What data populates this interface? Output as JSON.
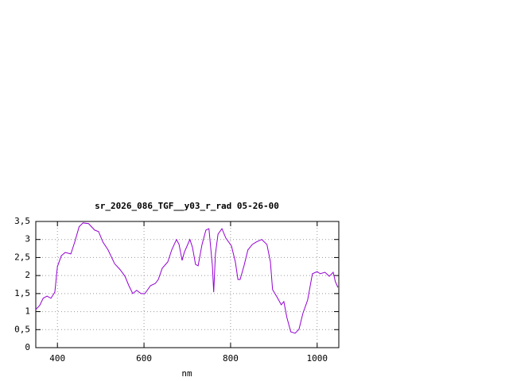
{
  "chart_data": {
    "type": "line",
    "title": "sr_2026_086_TGF__y03_r_rad 05-26-00",
    "x_label": "nm",
    "xlim": [
      350,
      1050
    ],
    "ylim": [
      0,
      3.5
    ],
    "xticks": [
      400,
      600,
      800,
      1000
    ],
    "yticks": [
      0,
      {
        "value": 0.5,
        "label": "0,5"
      },
      1,
      {
        "value": 1.5,
        "label": "1,5"
      },
      2,
      {
        "value": 2.5,
        "label": "2,5"
      },
      3,
      {
        "value": 3.5,
        "label": "3,5"
      }
    ],
    "grid": true,
    "x": [
      350,
      359,
      367,
      376,
      385,
      394,
      400,
      409,
      418,
      431,
      440,
      450,
      459,
      472,
      486,
      495,
      505,
      517,
      532,
      545,
      556,
      565,
      574,
      583,
      593,
      602,
      615,
      626,
      633,
      642,
      655,
      664,
      675,
      681,
      688,
      693,
      706,
      712,
      719,
      725,
      734,
      743,
      750,
      758,
      761,
      765,
      771,
      780,
      789,
      802,
      811,
      817,
      822,
      831,
      840,
      850,
      859,
      872,
      884,
      892,
      897,
      908,
      917,
      923,
      930,
      939,
      949,
      958,
      967,
      978,
      989,
      1000,
      1007,
      1018,
      1028,
      1037,
      1042,
      1048
    ],
    "series": [
      {
        "color": "#9400d3",
        "values": [
          1.06,
          1.17,
          1.37,
          1.43,
          1.37,
          1.54,
          2.25,
          2.55,
          2.64,
          2.6,
          2.93,
          3.35,
          3.46,
          3.44,
          3.26,
          3.22,
          2.93,
          2.71,
          2.33,
          2.16,
          1.98,
          1.72,
          1.5,
          1.59,
          1.5,
          1.5,
          1.72,
          1.78,
          1.89,
          2.2,
          2.38,
          2.71,
          3.0,
          2.86,
          2.42,
          2.64,
          3.0,
          2.78,
          2.31,
          2.27,
          2.86,
          3.26,
          3.3,
          2.27,
          1.54,
          2.6,
          3.15,
          3.3,
          3.04,
          2.82,
          2.38,
          1.89,
          1.89,
          2.27,
          2.71,
          2.86,
          2.93,
          3.0,
          2.86,
          2.38,
          1.61,
          1.39,
          1.19,
          1.28,
          0.84,
          0.44,
          0.4,
          0.51,
          0.95,
          1.32,
          2.05,
          2.11,
          2.05,
          2.09,
          1.98,
          2.09,
          1.83,
          1.67
        ]
      }
    ]
  }
}
